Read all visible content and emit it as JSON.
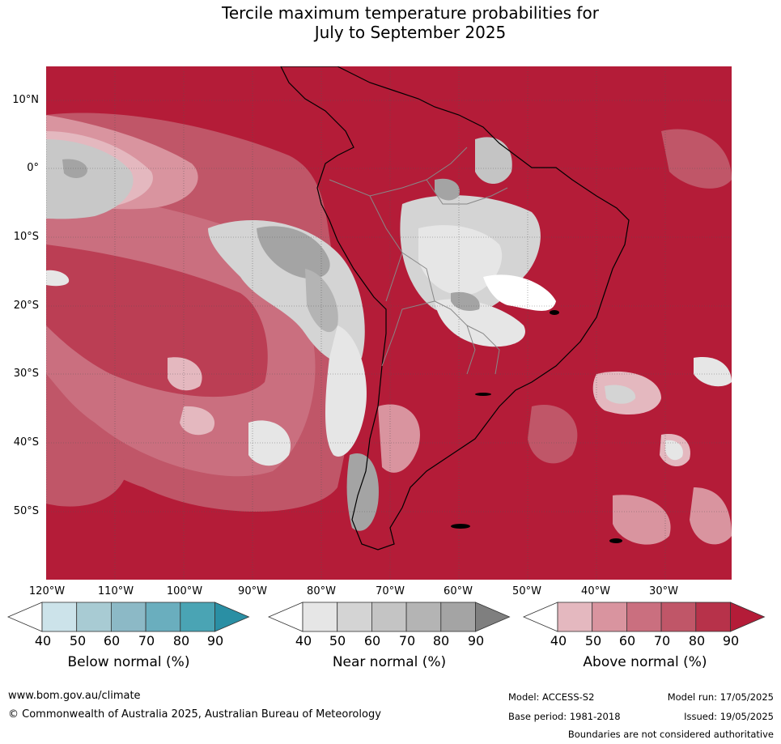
{
  "title_line1": "Tercile maximum temperature probabilities for",
  "title_line2": "July to September 2025",
  "lat_labels": [
    "10°N",
    "0°",
    "10°S",
    "20°S",
    "30°S",
    "40°S",
    "50°S"
  ],
  "lon_labels": [
    "120°W",
    "110°W",
    "100°W",
    "90°W",
    "80°W",
    "70°W",
    "60°W",
    "50°W",
    "40°W",
    "30°W"
  ],
  "colorbars": {
    "below": {
      "title": "Below normal (%)",
      "ticks": [
        "40",
        "50",
        "60",
        "70",
        "80",
        "90"
      ],
      "colors": [
        "#ffffff",
        "#cce3ea",
        "#a8cbd3",
        "#8cb9c6",
        "#6aaebe",
        "#4aa4b4",
        "#2a8fa4"
      ]
    },
    "near": {
      "title": "Near normal (%)",
      "ticks": [
        "40",
        "50",
        "60",
        "70",
        "80",
        "90"
      ],
      "colors": [
        "#ffffff",
        "#e6e6e6",
        "#d4d4d4",
        "#c4c4c4",
        "#b4b4b4",
        "#a4a4a4",
        "#7f7f7f"
      ]
    },
    "above": {
      "title": "Above normal (%)",
      "ticks": [
        "40",
        "50",
        "60",
        "70",
        "80",
        "90"
      ],
      "colors": [
        "#ffffff",
        "#e4b8bf",
        "#d9949f",
        "#ca6f7f",
        "#c05668",
        "#b7324a",
        "#b41c38"
      ]
    }
  },
  "footer": {
    "website": "www.bom.gov.au/climate",
    "copyright": "© Commonwealth of Australia 2025, Australian Bureau of Meteorology",
    "model": "Model: ACCESS-S2",
    "base_period": "Base period: 1981-2018",
    "model_run": "Model run: 17/05/2025",
    "issued": "Issued: 19/05/2025",
    "disclaimer": "Boundaries are not considered authoritative"
  }
}
